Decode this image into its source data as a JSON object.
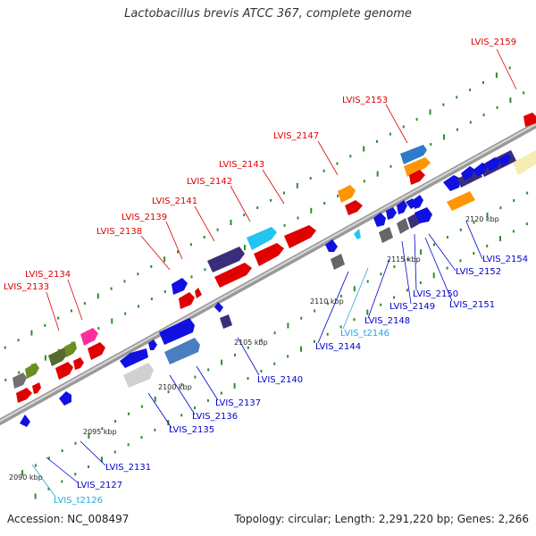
{
  "title": "Lactobacillus brevis ATCC 367, complete genome",
  "footer": {
    "accession": "Accession: NC_008497",
    "topology": "Topology: circular; Length: 2,291,220 bp; Genes: 2,266"
  },
  "colors": {
    "backbone": "#a8a8a8",
    "tick": "#2e8b2e",
    "label_red": "#e00000",
    "label_blue": "#0000cc",
    "label_cyan": "#22aadd"
  },
  "scale_labels": [
    "2090 kbp",
    "2095 kbp",
    "2100 kbp",
    "2105 kbp",
    "2110 kbp",
    "2115 kbp",
    "2120 kbp"
  ],
  "gene_labels": {
    "top": [
      "LVIS_2159",
      "LVIS_2153",
      "LVIS_2147",
      "LVIS_2143",
      "LVIS_2142",
      "LVIS_2141",
      "LVIS_2139",
      "LVIS_2138",
      "LVIS_2134",
      "LVIS_2133"
    ],
    "bottom": [
      "LVIS_2154",
      "LVIS_2152",
      "LVIS_2151",
      "LVIS_2150",
      "LVIS_2149",
      "LVIS_2148",
      "LVIS_t2146",
      "LVIS_2144",
      "LVIS_2140",
      "LVIS_2137",
      "LVIS_2136",
      "LVIS_2135",
      "LVIS_2131",
      "LVIS_2127",
      "LVIS_t2126"
    ]
  }
}
